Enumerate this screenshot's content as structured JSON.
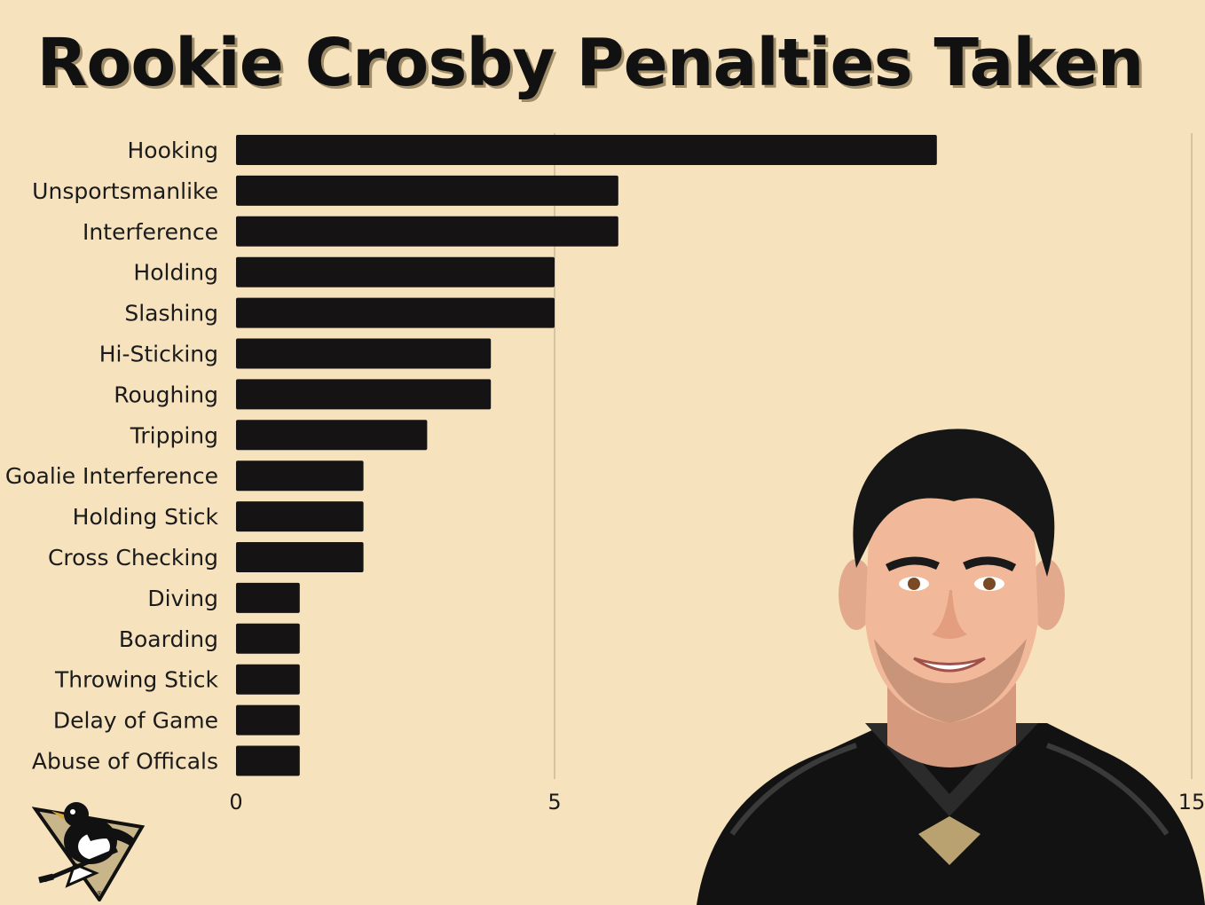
{
  "title": "Rookie Crosby Penalties Taken",
  "colors": {
    "background": "#f6e2bd",
    "bar": "#161314",
    "gridline": "#c9b995",
    "text": "#1b1b1b"
  },
  "chart_data": {
    "type": "bar",
    "orientation": "horizontal",
    "title": "Rookie Crosby Penalties Taken",
    "xlabel": "",
    "ylabel": "",
    "categories": [
      "Hooking",
      "Unsportsmanlike",
      "Interference",
      "Holding",
      "Slashing",
      "Hi-Sticking",
      "Roughing",
      "Tripping",
      "Goalie Interference",
      "Holding Stick",
      "Cross Checking",
      "Diving",
      "Boarding",
      "Throwing Stick",
      "Delay of Game",
      "Abuse of Officals"
    ],
    "values": [
      11,
      6,
      6,
      5,
      5,
      4,
      4,
      3,
      2,
      2,
      2,
      1,
      1,
      1,
      1,
      1
    ],
    "xlim": [
      0,
      15
    ],
    "xticks": [
      {
        "value": 0,
        "label": "0"
      },
      {
        "value": 5,
        "label": "5"
      },
      {
        "value": 15,
        "label": "15"
      }
    ],
    "grid": true
  },
  "images": {
    "logo": "pittsburgh-penguins-logo",
    "portrait": "cartoon-player-portrait"
  }
}
